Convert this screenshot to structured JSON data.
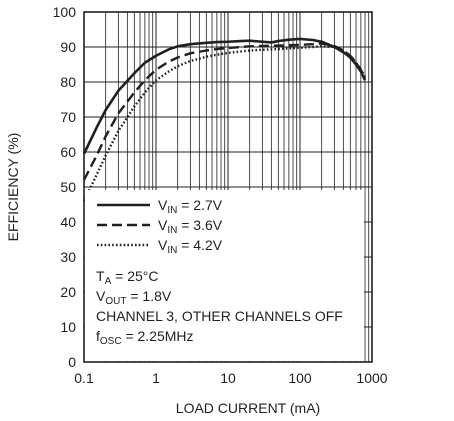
{
  "chart_data": {
    "type": "line",
    "title": "",
    "xlabel": "LOAD CURRENT (mA)",
    "ylabel": "EFFICIENCY (%)",
    "x_scale": "log",
    "xlim": [
      0.1,
      1000
    ],
    "ylim": [
      0,
      100
    ],
    "grid": true,
    "x_ticks": [
      0.1,
      1,
      10,
      100,
      1000
    ],
    "x_tick_labels": [
      "0.1",
      "1",
      "10",
      "100",
      "1000"
    ],
    "y_ticks": [
      0,
      10,
      20,
      30,
      40,
      50,
      60,
      70,
      80,
      90,
      100
    ],
    "y_tick_labels": [
      "0",
      "10",
      "20",
      "30",
      "40",
      "50",
      "60",
      "70",
      "80",
      "90",
      "100"
    ],
    "series": [
      {
        "name_main": "V",
        "name_sub": "IN",
        "name_rest": " = 2.7V",
        "style": "solid",
        "x": [
          0.1,
          0.15,
          0.2,
          0.3,
          0.5,
          0.7,
          1,
          1.5,
          2,
          3,
          5,
          7,
          10,
          15,
          20,
          30,
          40,
          50,
          70,
          100,
          150,
          200,
          300,
          400,
          500,
          600,
          700,
          800
        ],
        "y": [
          59.5,
          67,
          72,
          77.5,
          82.5,
          85.5,
          87.5,
          89.3,
          90.2,
          90.8,
          91.2,
          91.4,
          91.5,
          91.7,
          91.8,
          91.5,
          91.3,
          91.7,
          92.1,
          92.3,
          92.0,
          91.5,
          90.0,
          88.5,
          87.0,
          85.0,
          83.0,
          80.5
        ]
      },
      {
        "name_main": "V",
        "name_sub": "IN",
        "name_rest": " = 3.6V",
        "style": "dashed",
        "x": [
          0.1,
          0.15,
          0.2,
          0.3,
          0.5,
          0.7,
          1,
          1.5,
          2,
          3,
          5,
          7,
          10,
          15,
          20,
          30,
          50,
          70,
          100,
          150,
          200,
          300,
          400,
          500,
          600,
          700,
          800
        ],
        "y": [
          52,
          59,
          64.5,
          71,
          77,
          80.5,
          83.5,
          85.8,
          87.0,
          88.2,
          89.0,
          89.4,
          89.7,
          90.0,
          90.2,
          90.3,
          90.4,
          90.5,
          90.6,
          90.8,
          91.0,
          90.3,
          89.0,
          87.5,
          85.5,
          83.5,
          81.0
        ]
      },
      {
        "name_main": "V",
        "name_sub": "IN",
        "name_rest": " = 4.2V",
        "style": "dotted",
        "x": [
          0.1,
          0.15,
          0.2,
          0.3,
          0.5,
          0.7,
          1,
          1.5,
          2,
          3,
          5,
          7,
          10,
          15,
          20,
          30,
          50,
          70,
          100,
          150,
          200,
          300,
          400,
          500,
          600,
          700,
          800
        ],
        "y": [
          46,
          53.5,
          59,
          66,
          73,
          77,
          80.5,
          83,
          84.5,
          86.0,
          87.2,
          87.8,
          88.3,
          88.7,
          89.0,
          89.2,
          89.4,
          89.6,
          89.8,
          90.0,
          90.2,
          90.0,
          89.0,
          87.5,
          85.5,
          83.5,
          81.5
        ]
      }
    ],
    "annotations": [
      {
        "parts": [
          {
            "t": "T"
          },
          {
            "t": "A",
            "sub": true
          },
          {
            "t": " = 25°C"
          }
        ]
      },
      {
        "parts": [
          {
            "t": "V"
          },
          {
            "t": "OUT",
            "sub": true
          },
          {
            "t": " = 1.8V"
          }
        ]
      },
      {
        "parts": [
          {
            "t": "CHANNEL 3, OTHER CHANNELS OFF"
          }
        ]
      },
      {
        "parts": [
          {
            "t": "f"
          },
          {
            "t": "OSC",
            "sub": true
          },
          {
            "t": " = 2.25MHz"
          }
        ]
      }
    ],
    "legend_position": "bottom-left"
  }
}
